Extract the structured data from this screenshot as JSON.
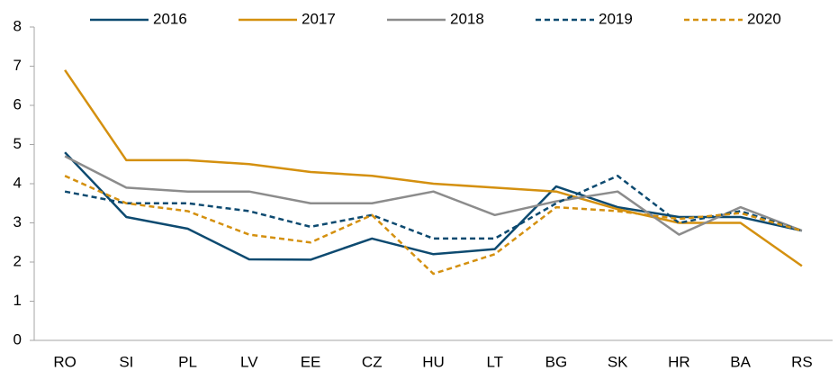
{
  "chart_data": {
    "type": "line",
    "categories": [
      "RO",
      "SI",
      "PL",
      "LV",
      "EE",
      "CZ",
      "HU",
      "LT",
      "BG",
      "SK",
      "HR",
      "BA",
      "RS"
    ],
    "series": [
      {
        "name": "2016",
        "color": "#0d4a70",
        "dashed": false,
        "values": [
          4.8,
          3.15,
          2.85,
          2.07,
          2.06,
          2.6,
          2.2,
          2.33,
          3.93,
          3.4,
          3.15,
          3.15,
          2.8
        ]
      },
      {
        "name": "2017",
        "color": "#d4900f",
        "dashed": false,
        "values": [
          6.9,
          4.6,
          4.6,
          4.5,
          4.3,
          4.2,
          4.0,
          3.9,
          3.8,
          3.35,
          3.0,
          3.0,
          1.9
        ]
      },
      {
        "name": "2018",
        "color": "#8c8c8c",
        "dashed": false,
        "values": [
          4.7,
          3.9,
          3.8,
          3.8,
          3.5,
          3.5,
          3.8,
          3.2,
          3.55,
          3.8,
          2.7,
          3.4,
          2.8
        ]
      },
      {
        "name": "2019",
        "color": "#0d4a70",
        "dashed": true,
        "values": [
          3.8,
          3.5,
          3.5,
          3.3,
          2.9,
          3.2,
          2.6,
          2.6,
          3.5,
          4.2,
          3.0,
          3.3,
          2.8
        ]
      },
      {
        "name": "2020",
        "color": "#d4900f",
        "dashed": true,
        "values": [
          4.2,
          3.5,
          3.3,
          2.7,
          2.5,
          3.2,
          1.7,
          2.2,
          3.4,
          3.3,
          3.1,
          3.25,
          2.8
        ]
      }
    ],
    "ylim": [
      0,
      8
    ],
    "yticks": [
      0,
      1,
      2,
      3,
      4,
      5,
      6,
      7,
      8
    ],
    "grid": false,
    "legend": "top"
  }
}
